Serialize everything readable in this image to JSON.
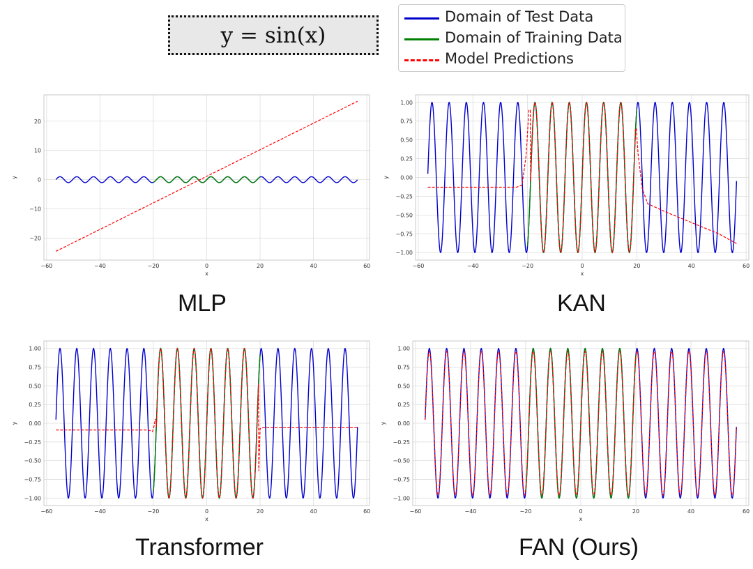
{
  "formula": "y =  sin(x)",
  "legend": {
    "items": [
      {
        "label": "Domain of Test Data",
        "color": "#0000cc",
        "style": "solid"
      },
      {
        "label": "Domain of Training Data",
        "color": "#008000",
        "style": "solid"
      },
      {
        "label": "Model Predictions",
        "color": "#ff0000",
        "style": "dashed"
      }
    ]
  },
  "chart_data": [
    {
      "type": "line",
      "caption": "MLP",
      "xlabel": "x",
      "ylabel": "y",
      "xlim": [
        -61,
        61
      ],
      "ylim": [
        -27.5,
        29
      ],
      "xticks": [
        -60,
        -40,
        -20,
        0,
        20,
        40,
        60
      ],
      "xtick_labels": [
        "−60",
        "−40",
        "−20",
        "0",
        "20",
        "40",
        "60"
      ],
      "yticks": [
        -20,
        -10,
        0,
        10,
        20
      ],
      "ytick_labels": [
        "−20",
        "−10",
        "0",
        "10",
        "20"
      ],
      "grid": true,
      "test_range": [
        -56.5,
        56.5
      ],
      "train_range": [
        -20,
        20
      ],
      "prediction": {
        "kind": "linear",
        "x": [
          -56.5,
          56.5
        ],
        "y": [
          -24.5,
          26.8
        ]
      }
    },
    {
      "type": "line",
      "caption": "KAN",
      "xlabel": "x",
      "ylabel": "y",
      "xlim": [
        -61,
        61
      ],
      "ylim": [
        -1.1,
        1.1
      ],
      "xticks": [
        -60,
        -40,
        -20,
        0,
        20,
        40,
        60
      ],
      "xtick_labels": [
        "−60",
        "−40",
        "−20",
        "0",
        "20",
        "40",
        "60"
      ],
      "yticks": [
        -1,
        -0.75,
        -0.5,
        -0.25,
        0,
        0.25,
        0.5,
        0.75,
        1
      ],
      "ytick_labels": [
        "−1.00",
        "−0.75",
        "−0.50",
        "−0.25",
        "0.00",
        "0.25",
        "0.50",
        "0.75",
        "1.00"
      ],
      "grid": true,
      "test_range": [
        -56.5,
        56.5
      ],
      "train_range": [
        -20,
        20
      ],
      "prediction": {
        "kind": "piecewise",
        "x": [
          -56.5,
          -24,
          -22,
          -20.5,
          -19.5,
          19.8,
          20.5,
          22,
          24,
          30,
          40,
          50,
          56.5
        ],
        "y": [
          -0.13,
          -0.13,
          -0.1,
          0.3,
          0.9,
          0.65,
          0.3,
          -0.15,
          -0.35,
          -0.45,
          -0.6,
          -0.75,
          -0.88
        ]
      }
    },
    {
      "type": "line",
      "caption": "Transformer",
      "xlabel": "x",
      "ylabel": "y",
      "xlim": [
        -61,
        61
      ],
      "ylim": [
        -1.1,
        1.1
      ],
      "xticks": [
        -60,
        -40,
        -20,
        0,
        20,
        40,
        60
      ],
      "xtick_labels": [
        "−60",
        "−40",
        "−20",
        "0",
        "20",
        "40",
        "60"
      ],
      "yticks": [
        -1,
        -0.75,
        -0.5,
        -0.25,
        0,
        0.25,
        0.5,
        0.75,
        1
      ],
      "ytick_labels": [
        "−1.00",
        "−0.75",
        "−0.50",
        "−0.25",
        "0.00",
        "0.25",
        "0.50",
        "0.75",
        "1.00"
      ],
      "grid": true,
      "test_range": [
        -56.5,
        56.5
      ],
      "train_range": [
        -20,
        20
      ],
      "prediction": {
        "kind": "piecewise",
        "x": [
          -56.5,
          -22,
          -20.3,
          -19.8,
          -19.3,
          19.4,
          20,
          21,
          56.5
        ],
        "y": [
          -0.09,
          -0.09,
          -0.11,
          -0.05,
          0.05,
          -0.75,
          -0.07,
          -0.06,
          -0.06
        ]
      }
    },
    {
      "type": "line",
      "caption": "FAN (Ours)",
      "xlabel": "x",
      "ylabel": "y",
      "xlim": [
        -61,
        61
      ],
      "ylim": [
        -1.1,
        1.1
      ],
      "xticks": [
        -60,
        -40,
        -20,
        0,
        20,
        40,
        60
      ],
      "xtick_labels": [
        "−60",
        "−40",
        "−20",
        "0",
        "20",
        "40",
        "60"
      ],
      "yticks": [
        -1,
        -0.75,
        -0.5,
        -0.25,
        0,
        0.25,
        0.5,
        0.75,
        1
      ],
      "ytick_labels": [
        "−1.00",
        "−0.75",
        "−0.50",
        "−0.25",
        "0.00",
        "0.25",
        "0.50",
        "0.75",
        "1.00"
      ],
      "grid": true,
      "test_range": [
        -56.5,
        56.5
      ],
      "train_range": [
        -20,
        20
      ],
      "prediction": {
        "kind": "sine",
        "amplitude": 0.96,
        "x": [
          -56.5,
          56.5
        ]
      }
    }
  ]
}
